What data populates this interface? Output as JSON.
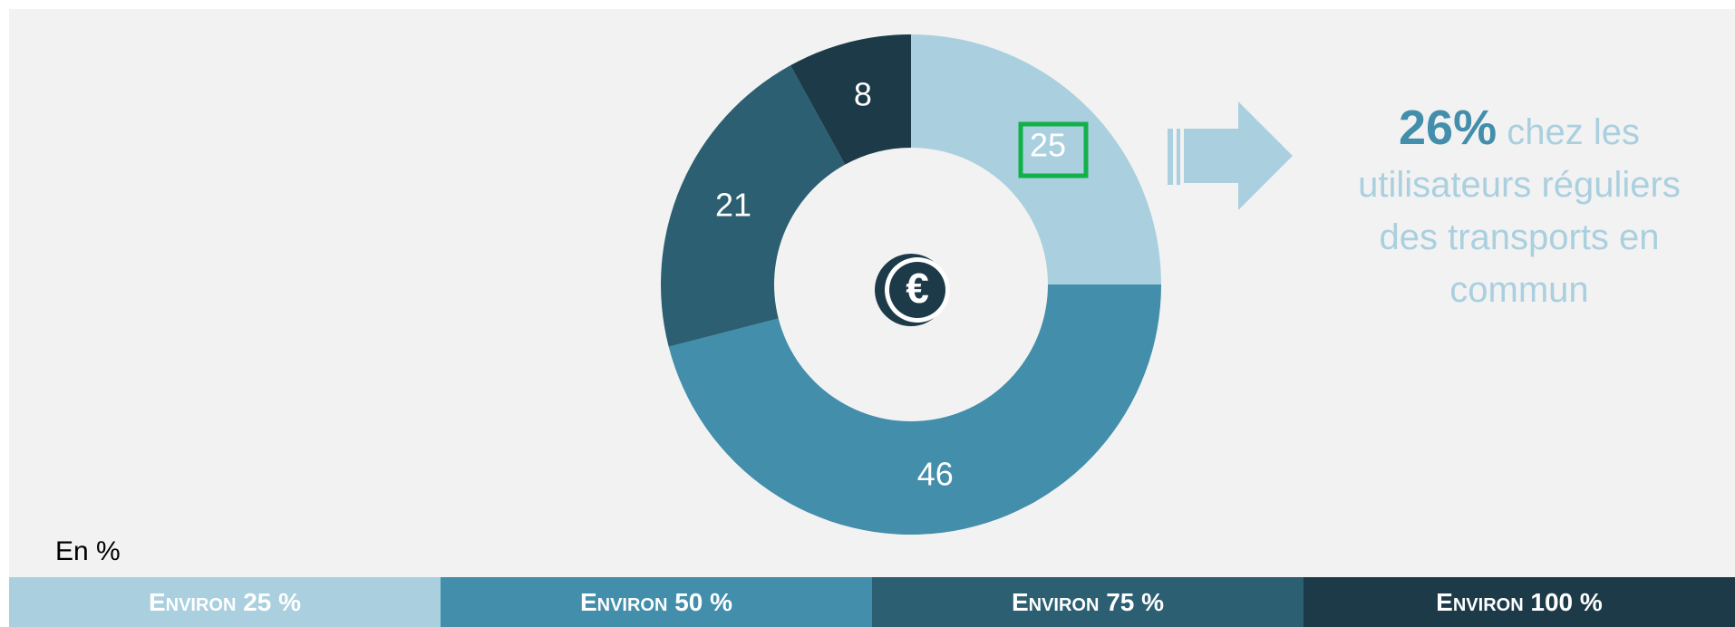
{
  "chart_data": {
    "type": "donut",
    "categories": [
      "Environ 25 %",
      "Environ 50 %",
      "Environ 75 %",
      "Environ 100 %"
    ],
    "values": [
      25,
      46,
      21,
      8
    ],
    "colors": [
      "#aad0df",
      "#428eab",
      "#2b5f71",
      "#1c3a48"
    ],
    "unit_note": "En %",
    "annotation": {
      "highlight": "26%",
      "text": "chez les utilisateurs réguliers des transports en commun"
    }
  }
}
